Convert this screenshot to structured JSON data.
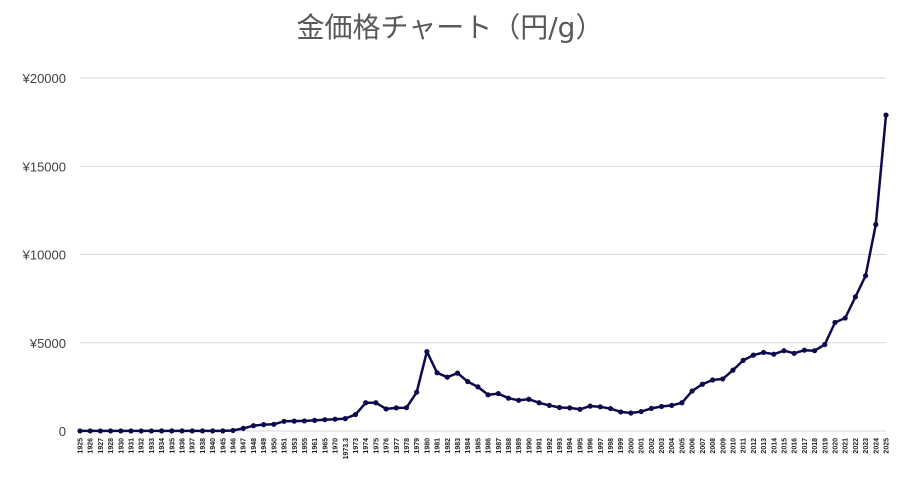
{
  "chart_data": {
    "type": "line",
    "title": "金価格チャート（円/g）",
    "xlabel": "",
    "ylabel": "",
    "ylim": [
      0,
      20000
    ],
    "y_ticks": [
      0,
      5000,
      10000,
      15000,
      20000
    ],
    "y_tick_labels": [
      "0",
      "¥5000",
      "¥10000",
      "¥15000",
      "¥20000"
    ],
    "grid": "horizontal",
    "legend": "none",
    "line_color": "#0d0a4d",
    "categories": [
      "1925",
      "1926",
      "1927",
      "1928",
      "1930",
      "1931",
      "1932",
      "1933",
      "1934",
      "1935",
      "1936",
      "1937",
      "1938",
      "1940",
      "1945",
      "1946",
      "1947",
      "1948",
      "1949",
      "1950",
      "1951",
      "1953",
      "1955",
      "1961",
      "1965",
      "1970",
      "1973.3",
      "1973",
      "1974",
      "1975",
      "1976",
      "1977",
      "1978",
      "1979",
      "1980",
      "1981",
      "1982",
      "1983",
      "1984",
      "1985",
      "1986",
      "1987",
      "1988",
      "1989",
      "1990",
      "1991",
      "1992",
      "1993",
      "1994",
      "1995",
      "1996",
      "1997",
      "1998",
      "1999",
      "2000",
      "2001",
      "2002",
      "2003",
      "2004",
      "2005",
      "2006",
      "2007",
      "2008",
      "2009",
      "2010",
      "2011",
      "2012",
      "2013",
      "2014",
      "2015",
      "2016",
      "2017",
      "2018",
      "2019",
      "2020",
      "2021",
      "2022",
      "2023",
      "2024",
      "2025"
    ],
    "series": [
      {
        "values": [
          3,
          3,
          3,
          3,
          3,
          3,
          4,
          4,
          5,
          5,
          5,
          5,
          5,
          6,
          8,
          30,
          150,
          300,
          360,
          380,
          550,
          560,
          570,
          600,
          640,
          670,
          700,
          930,
          1600,
          1600,
          1250,
          1310,
          1320,
          2200,
          4500,
          3300,
          3050,
          3280,
          2800,
          2500,
          2050,
          2120,
          1860,
          1740,
          1800,
          1600,
          1450,
          1330,
          1310,
          1230,
          1410,
          1370,
          1270,
          1080,
          1020,
          1100,
          1280,
          1390,
          1450,
          1600,
          2270,
          2650,
          2890,
          2950,
          3450,
          4000,
          4300,
          4450,
          4350,
          4550,
          4400,
          4580,
          4550,
          4900,
          6150,
          6400,
          7600,
          8800,
          11700,
          17900
        ]
      }
    ]
  }
}
